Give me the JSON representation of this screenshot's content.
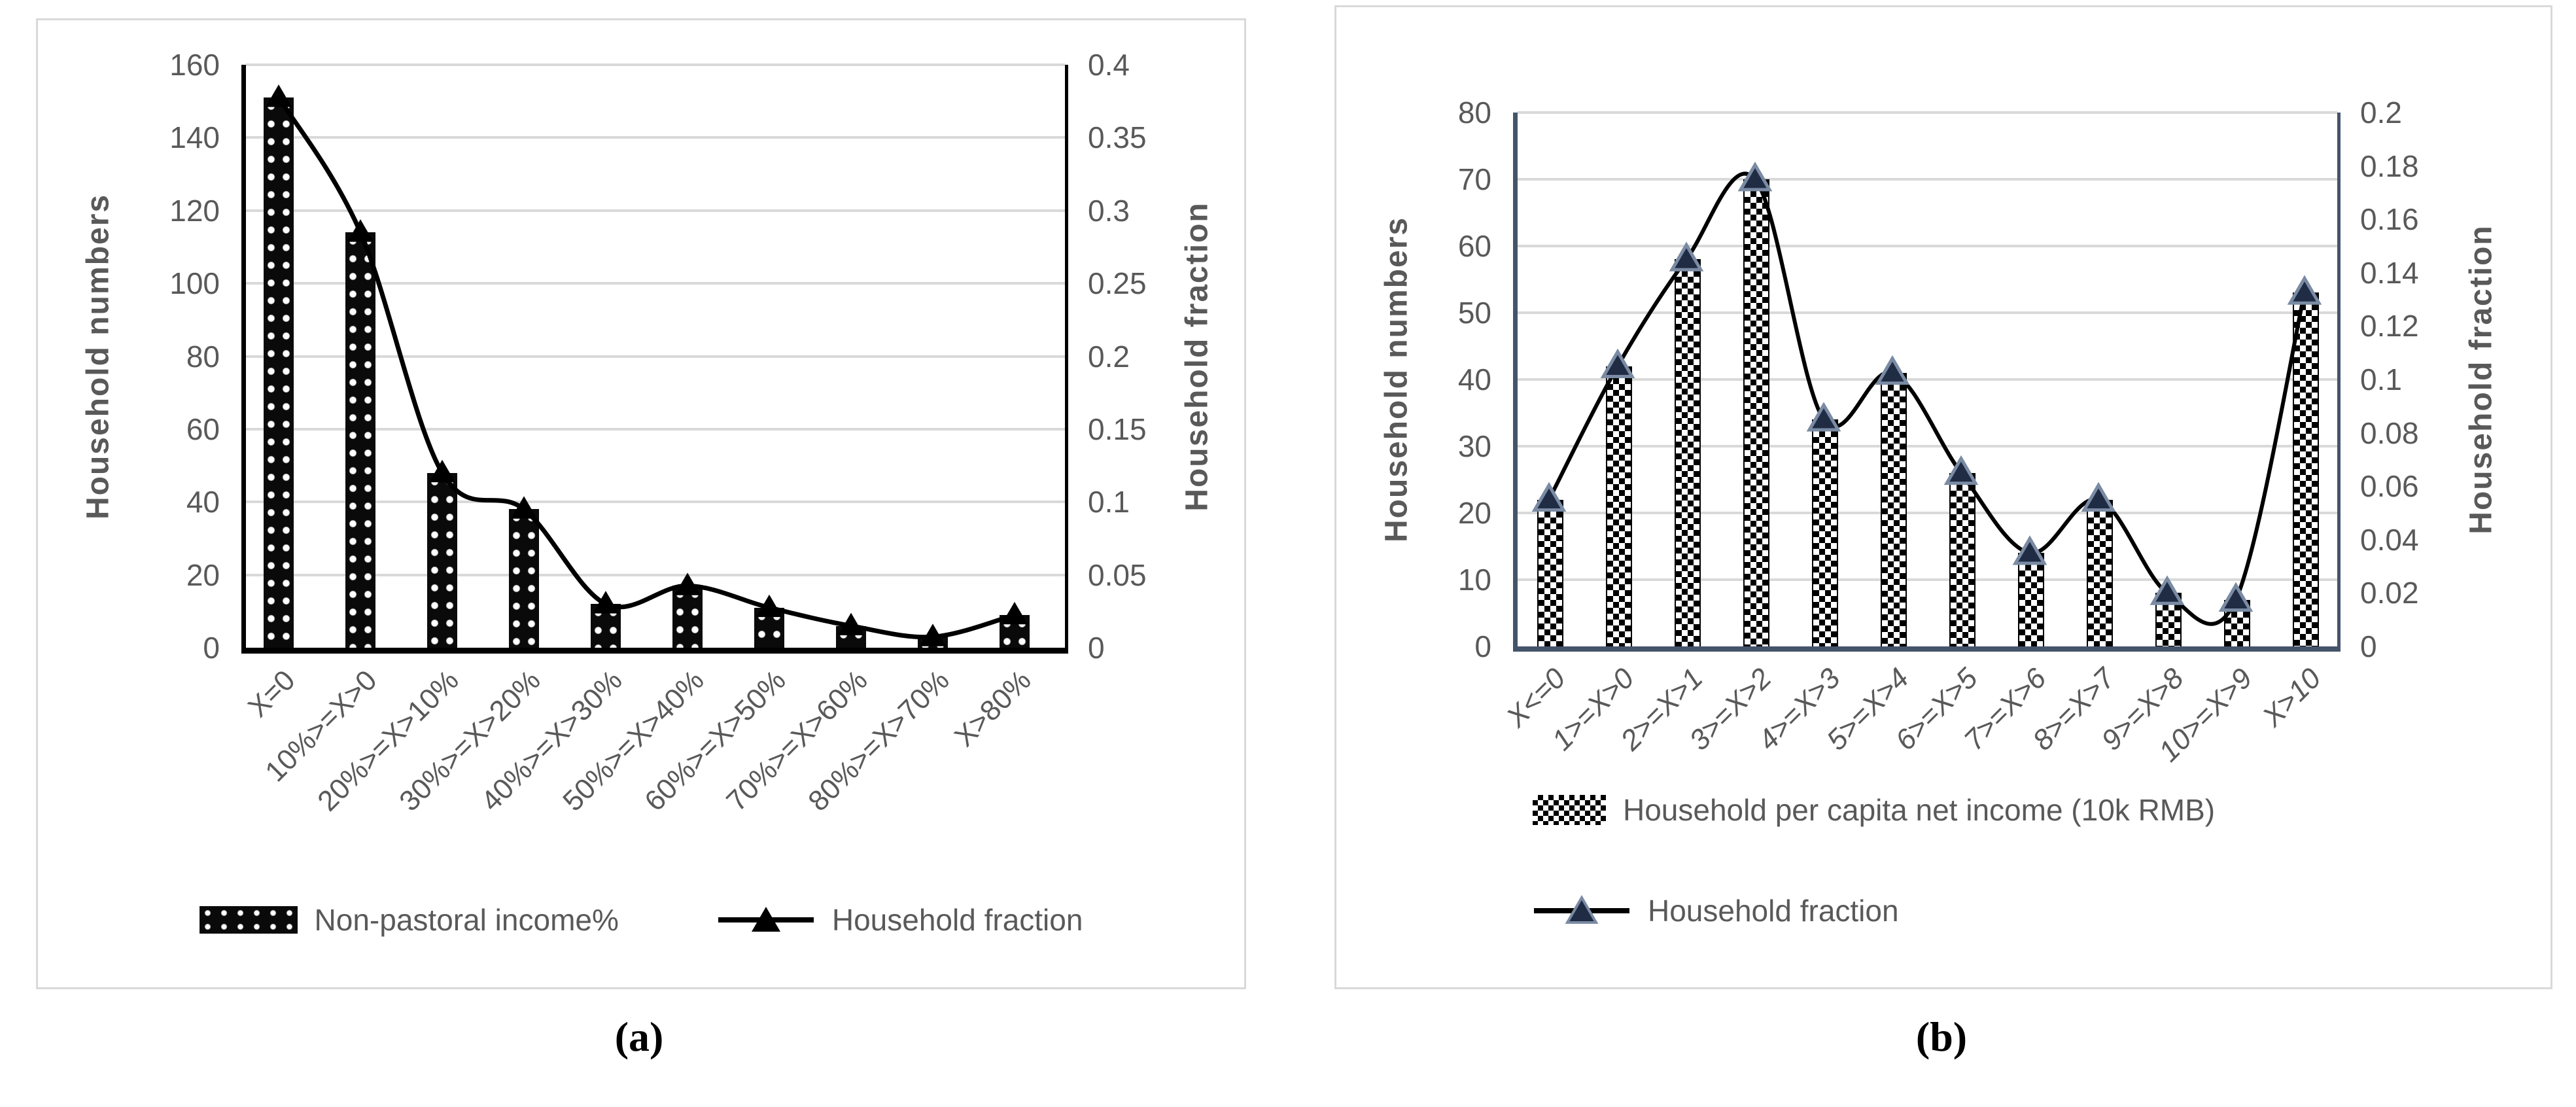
{
  "figure": {
    "type": "two-panel scientific figure",
    "captions": {
      "a": "(a)",
      "b": "(b)"
    }
  },
  "colors": {
    "panel_border": "#d9d9d9",
    "gridline": "#d9d9d9",
    "text": "#595959",
    "axis_a": "#000000",
    "axis_b": "#44546a",
    "bar_fill": "#000000",
    "line": "#000000",
    "marker_a": "#000000",
    "marker_b_fill": "#1f2c44",
    "marker_b_edge": "#7a8ba3"
  },
  "chart_data": [
    {
      "type": "combo-bar-line",
      "caption": "(a)",
      "categories": [
        "X=0",
        "10%>=X>0",
        "20%>=X>10%",
        "30%>=X>20%",
        "40%>=X>30%",
        "50%>=X>40%",
        "60%>=X>50%",
        "70%>=X>60%",
        "80%>=X>70%",
        "X>80%"
      ],
      "series": [
        {
          "name": "Non-pastoral income%",
          "type": "bar",
          "axis": "left",
          "values": [
            151,
            114,
            48,
            38,
            12,
            17,
            11,
            6,
            3,
            9
          ]
        },
        {
          "name": "Household fraction",
          "type": "line",
          "axis": "right",
          "values": [
            0.3775,
            0.285,
            0.12,
            0.095,
            0.03,
            0.0425,
            0.0275,
            0.015,
            0.0075,
            0.0225
          ]
        }
      ],
      "left_axis": {
        "label": "Household numbers",
        "min": 0,
        "max": 160,
        "ticks": [
          "160",
          "140",
          "120",
          "100",
          "80",
          "60",
          "40",
          "20",
          "0"
        ]
      },
      "right_axis": {
        "label": "Household fraction",
        "min": 0,
        "max": 0.4,
        "ticks": [
          "0.4",
          "0.35",
          "0.3",
          "0.25",
          "0.2",
          "0.15",
          "0.1",
          "0.05",
          "0"
        ]
      },
      "grid": true,
      "legend_position": "bottom-center-row",
      "legend": [
        {
          "label": "Non-pastoral income%",
          "swatch": "dotted-bar-swatch"
        },
        {
          "label": "Household fraction",
          "swatch": "line-triangle-swatch"
        }
      ]
    },
    {
      "type": "combo-bar-line",
      "caption": "(b)",
      "categories": [
        "X<=0",
        "1>=X>0",
        "2>=X>1",
        "3>=X>2",
        "4>=X>3",
        "5>=X>4",
        "6>=X>5",
        "7>=X>6",
        "8>=X>7",
        "9>=X>8",
        "10>=X>9",
        "X>10"
      ],
      "series": [
        {
          "name": "Household per capita net income (10k RMB)",
          "type": "bar",
          "axis": "left",
          "values": [
            22,
            42,
            58,
            70,
            34,
            41,
            26,
            14,
            22,
            8,
            7,
            53
          ]
        },
        {
          "name": "Household fraction",
          "type": "line",
          "axis": "right",
          "values": [
            0.055,
            0.105,
            0.145,
            0.175,
            0.085,
            0.1025,
            0.065,
            0.035,
            0.055,
            0.02,
            0.0175,
            0.1325
          ]
        }
      ],
      "left_axis": {
        "label": "Household numbers",
        "min": 0,
        "max": 80,
        "ticks": [
          "80",
          "70",
          "60",
          "50",
          "40",
          "30",
          "20",
          "10",
          "0"
        ]
      },
      "right_axis": {
        "label": "Household fraction",
        "min": 0,
        "max": 0.2,
        "ticks": [
          "0.2",
          "0.18",
          "0.16",
          "0.14",
          "0.12",
          "0.1",
          "0.08",
          "0.06",
          "0.04",
          "0.02",
          "0"
        ]
      },
      "grid": true,
      "legend_position": "bottom-left-column",
      "legend": [
        {
          "label": "Household per capita net income (10k RMB)",
          "swatch": "checker-bar-swatch"
        },
        {
          "label": "Household fraction",
          "swatch": "line-triangle-swatch"
        }
      ]
    }
  ]
}
